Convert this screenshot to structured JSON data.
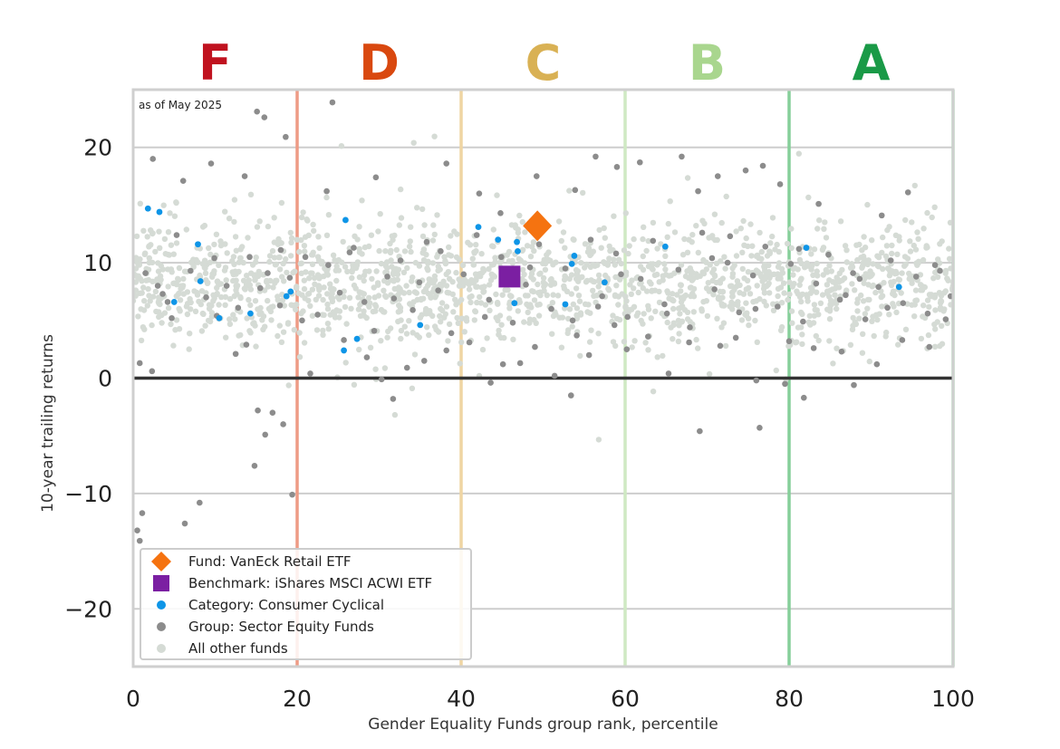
{
  "chart_data": {
    "type": "scatter",
    "note": "as of May 2025",
    "xlabel": "Gender Equality Funds group rank, percentile",
    "ylabel": "10-year trailing returns",
    "xlim": [
      0,
      100
    ],
    "ylim": [
      -25,
      25
    ],
    "xticks": [
      0,
      20,
      40,
      60,
      80,
      100
    ],
    "yticks": [
      -20,
      -10,
      0,
      10,
      20
    ],
    "ytick_labels": [
      "−20",
      "−10",
      "0",
      "10",
      "20"
    ],
    "grid": "horizontal",
    "grade_bands": [
      {
        "label": "F",
        "center": 10,
        "color": "#c0121f"
      },
      {
        "label": "D",
        "center": 30,
        "color": "#d9480f"
      },
      {
        "label": "C",
        "center": 50,
        "color": "#d9b154"
      },
      {
        "label": "B",
        "center": 70,
        "color": "#a9d68e"
      },
      {
        "label": "A",
        "center": 90,
        "color": "#1a9a47"
      }
    ],
    "band_lines": [
      {
        "x": 20,
        "color": "#ee9b85"
      },
      {
        "x": 40,
        "color": "#efd5a3"
      },
      {
        "x": 60,
        "color": "#cfe9c3"
      },
      {
        "x": 80,
        "color": "#86cf9a"
      },
      {
        "x": 100,
        "color": "#a8dcb6"
      }
    ],
    "legend_position": "lower-left",
    "series": [
      {
        "name": "All other funds",
        "color": "#d5dbd5",
        "marker": "circle",
        "generated_count": 1800,
        "mean": 8.2,
        "spread": 2.5
      },
      {
        "name": "Group: Sector Equity Funds",
        "color": "#8c8c8c",
        "marker": "circle",
        "points": [
          [
            0.5,
            -13.2
          ],
          [
            0.8,
            -14.1
          ],
          [
            1.1,
            -11.7
          ],
          [
            6.3,
            -12.6
          ],
          [
            8.1,
            -10.8
          ],
          [
            19.4,
            -10.1
          ],
          [
            14.8,
            -7.6
          ],
          [
            16.1,
            -4.9
          ],
          [
            18.3,
            -4.0
          ],
          [
            15.2,
            -2.8
          ],
          [
            17.0,
            -3.0
          ],
          [
            0.8,
            1.3
          ],
          [
            2.3,
            0.6
          ],
          [
            12.5,
            2.1
          ],
          [
            13.8,
            2.9
          ],
          [
            21.6,
            0.4
          ],
          [
            25.7,
            3.3
          ],
          [
            28.5,
            1.8
          ],
          [
            30.3,
            -0.1
          ],
          [
            31.7,
            -1.8
          ],
          [
            33.4,
            0.9
          ],
          [
            35.5,
            1.5
          ],
          [
            38.2,
            2.4
          ],
          [
            41.0,
            3.1
          ],
          [
            43.6,
            -0.4
          ],
          [
            45.1,
            1.2
          ],
          [
            47.2,
            1.3
          ],
          [
            49.0,
            2.7
          ],
          [
            51.4,
            0.2
          ],
          [
            53.4,
            -1.5
          ],
          [
            55.6,
            2.0
          ],
          [
            58.7,
            4.6
          ],
          [
            60.2,
            2.5
          ],
          [
            62.8,
            3.6
          ],
          [
            65.3,
            0.4
          ],
          [
            67.8,
            3.1
          ],
          [
            69.1,
            -4.6
          ],
          [
            71.6,
            2.8
          ],
          [
            73.5,
            3.5
          ],
          [
            76.0,
            -0.2
          ],
          [
            76.4,
            -4.3
          ],
          [
            79.5,
            -0.5
          ],
          [
            80.0,
            3.2
          ],
          [
            81.8,
            -1.7
          ],
          [
            83.0,
            2.6
          ],
          [
            86.4,
            2.3
          ],
          [
            87.9,
            -0.6
          ],
          [
            90.7,
            1.2
          ],
          [
            93.8,
            3.3
          ],
          [
            97.1,
            2.7
          ],
          [
            2.4,
            19.0
          ],
          [
            6.1,
            17.1
          ],
          [
            9.5,
            18.6
          ],
          [
            13.6,
            17.5
          ],
          [
            15.1,
            23.1
          ],
          [
            16.0,
            22.6
          ],
          [
            18.6,
            20.9
          ],
          [
            24.3,
            23.9
          ],
          [
            23.6,
            16.2
          ],
          [
            29.6,
            17.4
          ],
          [
            38.2,
            18.6
          ],
          [
            42.2,
            16.0
          ],
          [
            44.8,
            14.3
          ],
          [
            49.2,
            17.5
          ],
          [
            53.9,
            16.3
          ],
          [
            56.4,
            19.2
          ],
          [
            59.0,
            18.3
          ],
          [
            61.8,
            18.7
          ],
          [
            66.9,
            19.2
          ],
          [
            68.9,
            16.2
          ],
          [
            71.3,
            17.5
          ],
          [
            74.7,
            18.0
          ],
          [
            76.8,
            18.4
          ],
          [
            78.9,
            16.8
          ],
          [
            83.6,
            15.1
          ],
          [
            91.3,
            14.1
          ],
          [
            94.5,
            16.1
          ],
          [
            1.5,
            9.1
          ],
          [
            3.0,
            8.0
          ],
          [
            4.2,
            6.6
          ],
          [
            5.3,
            12.4
          ],
          [
            7.0,
            9.3
          ],
          [
            8.9,
            7.0
          ],
          [
            10.2,
            5.4
          ],
          [
            11.4,
            8.0
          ],
          [
            12.8,
            6.1
          ],
          [
            14.2,
            10.5
          ],
          [
            16.4,
            9.1
          ],
          [
            17.9,
            6.3
          ],
          [
            19.1,
            8.7
          ],
          [
            21.0,
            10.5
          ],
          [
            22.5,
            5.5
          ],
          [
            23.8,
            9.8
          ],
          [
            25.2,
            7.4
          ],
          [
            26.9,
            11.3
          ],
          [
            28.2,
            6.6
          ],
          [
            29.4,
            4.1
          ],
          [
            31.0,
            8.8
          ],
          [
            32.6,
            10.2
          ],
          [
            34.1,
            5.9
          ],
          [
            35.8,
            11.8
          ],
          [
            37.2,
            7.6
          ],
          [
            38.8,
            3.9
          ],
          [
            40.3,
            9.0
          ],
          [
            41.9,
            12.4
          ],
          [
            43.4,
            6.8
          ],
          [
            44.9,
            10.5
          ],
          [
            46.3,
            4.8
          ],
          [
            47.9,
            8.1
          ],
          [
            49.5,
            11.6
          ],
          [
            51.0,
            6.0
          ],
          [
            52.7,
            9.5
          ],
          [
            54.1,
            3.7
          ],
          [
            55.8,
            12.0
          ],
          [
            57.2,
            7.1
          ],
          [
            58.9,
            10.8
          ],
          [
            60.3,
            5.3
          ],
          [
            61.9,
            8.6
          ],
          [
            63.4,
            11.9
          ],
          [
            64.8,
            6.4
          ],
          [
            66.5,
            9.4
          ],
          [
            67.9,
            4.4
          ],
          [
            69.4,
            12.6
          ],
          [
            70.9,
            7.7
          ],
          [
            72.5,
            10.0
          ],
          [
            73.9,
            5.7
          ],
          [
            75.6,
            8.9
          ],
          [
            77.1,
            11.4
          ],
          [
            78.6,
            6.2
          ],
          [
            80.2,
            9.9
          ],
          [
            81.7,
            4.9
          ],
          [
            83.3,
            8.2
          ],
          [
            84.8,
            10.7
          ],
          [
            86.2,
            6.8
          ],
          [
            87.8,
            9.1
          ],
          [
            89.3,
            5.1
          ],
          [
            90.9,
            7.9
          ],
          [
            92.4,
            10.2
          ],
          [
            93.9,
            6.5
          ],
          [
            95.5,
            8.8
          ],
          [
            96.9,
            5.6
          ],
          [
            98.4,
            9.3
          ],
          [
            99.7,
            7.1
          ],
          [
            4.7,
            5.2
          ],
          [
            9.9,
            10.4
          ],
          [
            15.5,
            7.8
          ],
          [
            20.6,
            5.0
          ],
          [
            26.4,
            10.9
          ],
          [
            31.8,
            6.9
          ],
          [
            37.5,
            11.0
          ],
          [
            42.9,
            5.3
          ],
          [
            48.4,
            9.6
          ],
          [
            53.6,
            5.0
          ],
          [
            59.5,
            9.0
          ],
          [
            65.1,
            5.6
          ],
          [
            70.6,
            10.4
          ],
          [
            75.9,
            6.0
          ],
          [
            81.2,
            11.2
          ],
          [
            86.9,
            7.2
          ],
          [
            92.0,
            6.1
          ],
          [
            97.8,
            9.8
          ],
          [
            3.6,
            7.3
          ],
          [
            18.0,
            11.1
          ],
          [
            34.9,
            8.3
          ],
          [
            56.7,
            6.2
          ],
          [
            72.8,
            12.3
          ],
          [
            88.6,
            8.6
          ],
          [
            99.1,
            5.1
          ]
        ]
      },
      {
        "name": "Category: Consumer Cyclical",
        "color": "#0e95e7",
        "marker": "circle",
        "points": [
          [
            1.8,
            14.7
          ],
          [
            3.2,
            14.4
          ],
          [
            5.0,
            6.6
          ],
          [
            7.9,
            11.6
          ],
          [
            8.2,
            8.4
          ],
          [
            10.5,
            5.2
          ],
          [
            14.3,
            5.6
          ],
          [
            18.7,
            7.1
          ],
          [
            19.2,
            7.5
          ],
          [
            25.9,
            13.7
          ],
          [
            25.7,
            2.4
          ],
          [
            27.3,
            3.4
          ],
          [
            35.0,
            4.6
          ],
          [
            42.1,
            13.1
          ],
          [
            44.5,
            12.0
          ],
          [
            46.5,
            6.5
          ],
          [
            46.8,
            11.8
          ],
          [
            46.9,
            11.0
          ],
          [
            52.7,
            6.4
          ],
          [
            53.5,
            9.9
          ],
          [
            53.8,
            10.6
          ],
          [
            57.5,
            8.3
          ],
          [
            64.9,
            11.4
          ],
          [
            82.1,
            11.3
          ],
          [
            93.4,
            7.9
          ]
        ]
      },
      {
        "name": "Benchmark: iShares MSCI ACWI ETF",
        "color": "#7b1fa2",
        "marker": "square",
        "points": [
          [
            45.9,
            8.8
          ]
        ]
      },
      {
        "name": "Fund: VanEck Retail ETF",
        "color": "#f57310",
        "marker": "diamond",
        "points": [
          [
            49.3,
            13.2
          ]
        ]
      }
    ],
    "legend_order": [
      "Fund: VanEck Retail ETF",
      "Benchmark: iShares MSCI ACWI ETF",
      "Category: Consumer Cyclical",
      "Group: Sector Equity Funds",
      "All other funds"
    ]
  }
}
